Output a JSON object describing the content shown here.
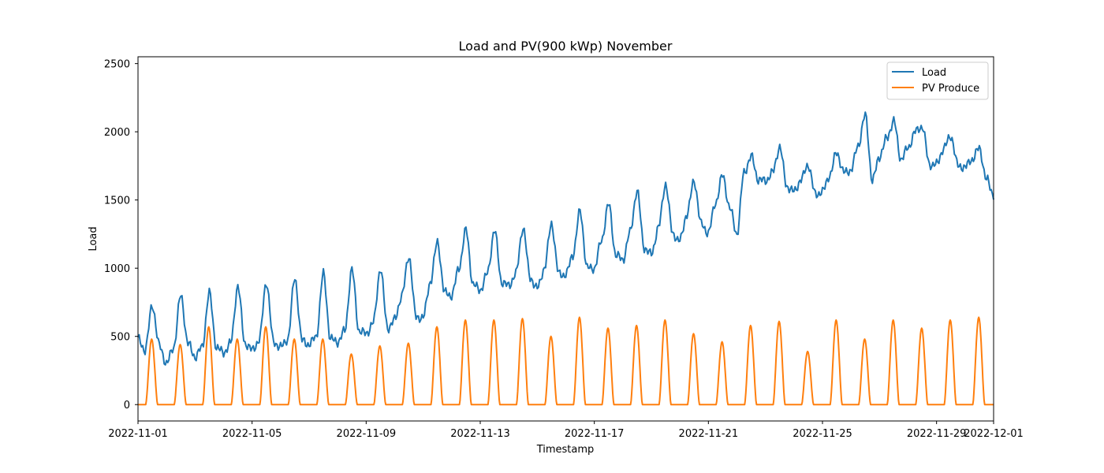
{
  "chart_data": {
    "type": "line",
    "title": "Load and PV(900 kWp) November",
    "xlabel": "Timestamp",
    "ylabel": "Load",
    "xlim": [
      "2022-11-01",
      "2022-12-01"
    ],
    "ylim": [
      -120,
      2550
    ],
    "x_ticks": [
      "2022-11-01",
      "2022-11-05",
      "2022-11-09",
      "2022-11-13",
      "2022-11-17",
      "2022-11-21",
      "2022-11-25",
      "2022-11-29",
      "2022-12-01"
    ],
    "y_ticks": [
      0,
      500,
      1000,
      1500,
      2000,
      2500
    ],
    "legend": {
      "placement": "top-right",
      "entries": [
        "Load",
        "PV Produce"
      ]
    },
    "grid": false,
    "series": [
      {
        "name": "Load",
        "color": "#1f77b4",
        "x": [
          "2022-11-01T00:00",
          "2022-11-01T06:00",
          "2022-11-01T12:00",
          "2022-11-01T18:00",
          "2022-11-02T00:00",
          "2022-11-02T06:00",
          "2022-11-02T12:00",
          "2022-11-02T18:00",
          "2022-11-03T00:00",
          "2022-11-03T06:00",
          "2022-11-03T12:00",
          "2022-11-03T18:00",
          "2022-11-04T00:00",
          "2022-11-04T06:00",
          "2022-11-04T12:00",
          "2022-11-04T18:00",
          "2022-11-05T00:00",
          "2022-11-05T06:00",
          "2022-11-05T12:00",
          "2022-11-05T18:00",
          "2022-11-06T00:00",
          "2022-11-06T06:00",
          "2022-11-06T12:00",
          "2022-11-06T18:00",
          "2022-11-07T00:00",
          "2022-11-07T06:00",
          "2022-11-07T12:00",
          "2022-11-07T18:00",
          "2022-11-08T00:00",
          "2022-11-08T06:00",
          "2022-11-08T12:00",
          "2022-11-08T18:00",
          "2022-11-09T00:00",
          "2022-11-09T06:00",
          "2022-11-09T12:00",
          "2022-11-09T18:00",
          "2022-11-10T00:00",
          "2022-11-10T06:00",
          "2022-11-10T12:00",
          "2022-11-10T18:00",
          "2022-11-11T00:00",
          "2022-11-11T06:00",
          "2022-11-11T12:00",
          "2022-11-11T18:00",
          "2022-11-12T00:00",
          "2022-11-12T06:00",
          "2022-11-12T12:00",
          "2022-11-12T18:00",
          "2022-11-13T00:00",
          "2022-11-13T06:00",
          "2022-11-13T12:00",
          "2022-11-13T18:00",
          "2022-11-14T00:00",
          "2022-11-14T06:00",
          "2022-11-14T12:00",
          "2022-11-14T18:00",
          "2022-11-15T00:00",
          "2022-11-15T06:00",
          "2022-11-15T12:00",
          "2022-11-15T18:00",
          "2022-11-16T00:00",
          "2022-11-16T06:00",
          "2022-11-16T12:00",
          "2022-11-16T18:00",
          "2022-11-17T00:00",
          "2022-11-17T06:00",
          "2022-11-17T12:00",
          "2022-11-17T18:00",
          "2022-11-18T00:00",
          "2022-11-18T06:00",
          "2022-11-18T12:00",
          "2022-11-18T18:00",
          "2022-11-19T00:00",
          "2022-11-19T06:00",
          "2022-11-19T12:00",
          "2022-11-19T18:00",
          "2022-11-20T00:00",
          "2022-11-20T06:00",
          "2022-11-20T12:00",
          "2022-11-20T18:00",
          "2022-11-21T00:00",
          "2022-11-21T06:00",
          "2022-11-21T12:00",
          "2022-11-21T18:00",
          "2022-11-22T00:00",
          "2022-11-22T06:00",
          "2022-11-22T12:00",
          "2022-11-22T18:00",
          "2022-11-23T00:00",
          "2022-11-23T06:00",
          "2022-11-23T12:00",
          "2022-11-23T18:00",
          "2022-11-24T00:00",
          "2022-11-24T06:00",
          "2022-11-24T12:00",
          "2022-11-24T18:00",
          "2022-11-25T00:00",
          "2022-11-25T06:00",
          "2022-11-25T12:00",
          "2022-11-25T18:00",
          "2022-11-26T00:00",
          "2022-11-26T06:00",
          "2022-11-26T12:00",
          "2022-11-26T18:00",
          "2022-11-27T00:00",
          "2022-11-27T06:00",
          "2022-11-27T12:00",
          "2022-11-27T18:00",
          "2022-11-28T00:00",
          "2022-11-28T06:00",
          "2022-11-28T12:00",
          "2022-11-28T18:00",
          "2022-11-29T00:00",
          "2022-11-29T06:00",
          "2022-11-29T12:00",
          "2022-11-29T18:00",
          "2022-11-30T00:00",
          "2022-11-30T06:00",
          "2022-11-30T12:00",
          "2022-11-30T18:00",
          "2022-12-01T00:00"
        ],
        "values": [
          480,
          400,
          730,
          430,
          300,
          420,
          800,
          450,
          350,
          420,
          820,
          420,
          380,
          450,
          870,
          450,
          400,
          470,
          900,
          460,
          420,
          480,
          930,
          470,
          440,
          500,
          960,
          480,
          460,
          540,
          990,
          540,
          520,
          600,
          1000,
          560,
          620,
          800,
          1090,
          640,
          640,
          900,
          1190,
          820,
          800,
          1000,
          1280,
          880,
          840,
          960,
          1280,
          900,
          870,
          960,
          1300,
          930,
          850,
          1000,
          1330,
          960,
          950,
          1100,
          1420,
          1000,
          1000,
          1200,
          1470,
          1100,
          1060,
          1260,
          1570,
          1150,
          1100,
          1300,
          1620,
          1250,
          1200,
          1400,
          1640,
          1320,
          1260,
          1480,
          1680,
          1440,
          1250,
          1700,
          1820,
          1650,
          1640,
          1700,
          1890,
          1600,
          1560,
          1650,
          1760,
          1540,
          1560,
          1680,
          1850,
          1700,
          1720,
          1900,
          2120,
          1640,
          1820,
          1950,
          2080,
          1800,
          1880,
          2000,
          2040,
          1760,
          1760,
          1880,
          1970,
          1750,
          1740,
          1800,
          1880,
          1650,
          1540
        ]
      },
      {
        "name": "PV Produce",
        "color": "#ff7f0e",
        "daily_peaks": [
          480,
          440,
          570,
          480,
          570,
          480,
          480,
          370,
          430,
          450,
          570,
          620,
          620,
          630,
          500,
          640,
          560,
          580,
          620,
          520,
          460,
          580,
          610,
          390,
          620,
          480,
          620,
          560,
          620,
          640
        ],
        "sunrise_hour": 6.5,
        "sunset_hour": 16.5
      }
    ]
  }
}
